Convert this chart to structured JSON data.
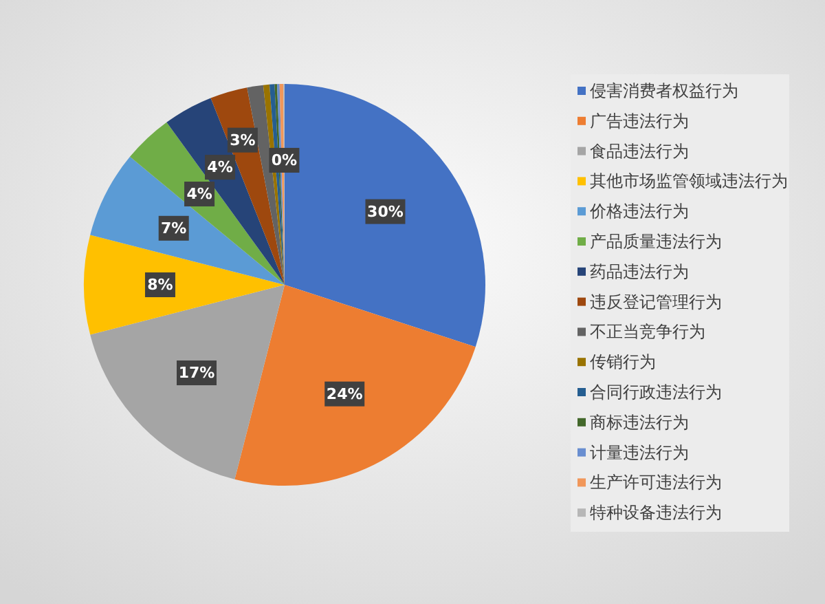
{
  "chart_data": {
    "type": "pie",
    "categories": [
      "侵害消费者权益行为",
      "广告违法行为",
      "食品违法行为",
      "其他市场监管领域违法行为",
      "价格违法行为",
      "产品质量违法行为",
      "药品违法行为",
      "违反登记管理行为",
      "不正当竞争行为",
      "传销行为",
      "合同行政违法行为",
      "商标违法行为",
      "计量违法行为",
      "生产许可违法行为",
      "特种设备违法行为"
    ],
    "values": [
      30,
      24,
      17,
      8,
      7,
      4,
      4,
      3,
      1.3,
      0.5,
      0.4,
      0.2,
      0.2,
      0.3,
      0.1
    ],
    "colors": [
      "#4472c4",
      "#ed7d31",
      "#a5a5a5",
      "#ffc000",
      "#5b9bd5",
      "#70ad47",
      "#264478",
      "#9e480e",
      "#636363",
      "#997300",
      "#255e91",
      "#43682b",
      "#698ed0",
      "#f1975a",
      "#b7b7b7"
    ],
    "value_labels": [
      "30%",
      "24%",
      "17%",
      "8%",
      "7%",
      "4%",
      "4%",
      "3%",
      null,
      null,
      null,
      null,
      null,
      null,
      "0%"
    ],
    "legend": "right"
  }
}
